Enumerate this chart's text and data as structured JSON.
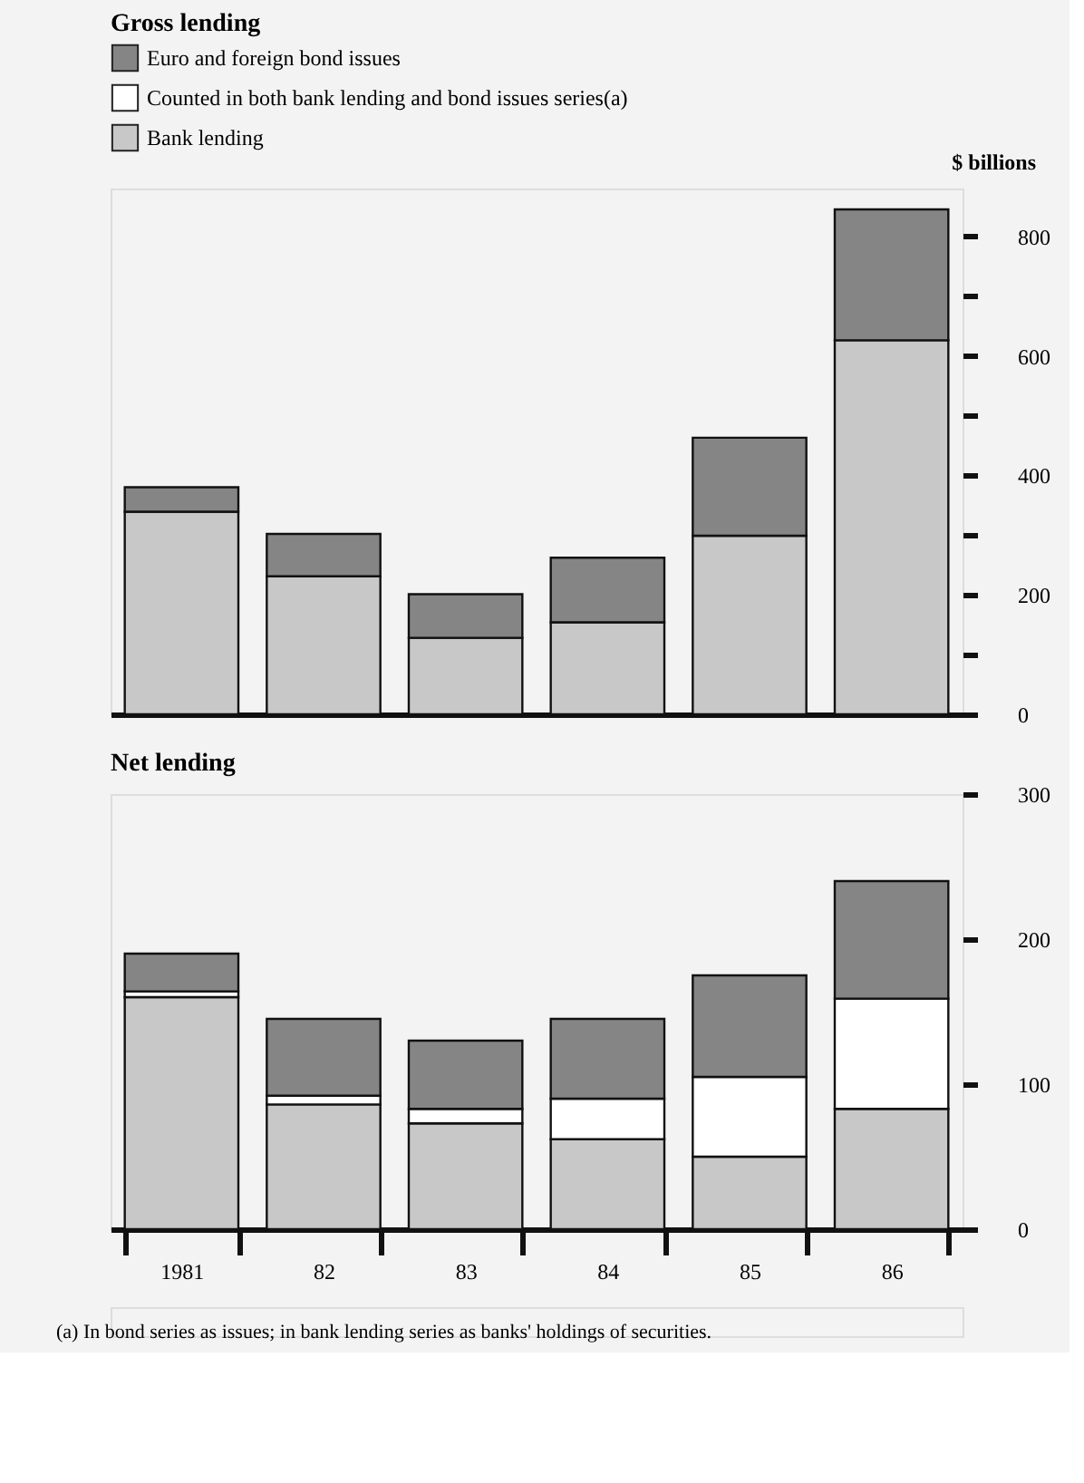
{
  "chart_data": [
    {
      "type": "bar",
      "stacked": true,
      "title": "Gross lending",
      "ylabel": "$ billions",
      "categories": [
        "1981",
        "82",
        "83",
        "84",
        "85",
        "86"
      ],
      "series": [
        {
          "name": "Bank lending",
          "color": "#c8c8c8",
          "values": [
            339,
            231,
            128,
            154,
            299,
            626
          ]
        },
        {
          "name": "Counted in both bank lending and bond issues series(a)",
          "color": "#ffffff",
          "values": [
            null,
            null,
            null,
            null,
            null,
            null
          ]
        },
        {
          "name": "Euro and foreign bond issues",
          "color": "#858585",
          "values": [
            41,
            71,
            73,
            108,
            164,
            219
          ]
        }
      ],
      "ylim": [
        0,
        880
      ],
      "yticks": [
        0,
        {
          "value": 100,
          "label": null
        },
        200,
        {
          "value": 300,
          "label": null
        },
        400,
        {
          "value": 500,
          "label": null
        },
        600,
        {
          "value": 700,
          "label": null
        },
        800
      ],
      "tick_labels": "y",
      "legend": "top",
      "grid": false
    },
    {
      "type": "bar",
      "stacked": true,
      "title": "Net lending",
      "categories": [
        "1981",
        "82",
        "83",
        "84",
        "85",
        "86"
      ],
      "series": [
        {
          "color": "#c8c8c8",
          "values": [
            160,
            86,
            73,
            62,
            50,
            83
          ]
        },
        {
          "color": "#ffffff",
          "values": [
            4,
            6,
            10,
            28,
            55,
            76
          ]
        },
        {
          "color": "#858585",
          "values": [
            26,
            53,
            47,
            55,
            70,
            81
          ]
        }
      ],
      "ylim": [
        0,
        300
      ],
      "yticks": [
        0,
        100,
        200,
        300
      ],
      "legend": false,
      "grid": false,
      "annotations": [
        "(a)  In bond series as issues; in bank lending series as banks' holdings of securities."
      ]
    }
  ]
}
